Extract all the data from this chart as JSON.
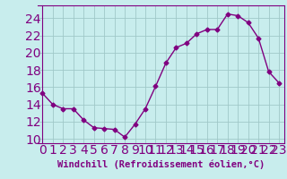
{
  "x": [
    0,
    1,
    2,
    3,
    4,
    5,
    6,
    7,
    8,
    9,
    10,
    11,
    12,
    13,
    14,
    15,
    16,
    17,
    18,
    19,
    20,
    21,
    22,
    23
  ],
  "y": [
    15.3,
    14.0,
    13.5,
    13.5,
    12.2,
    11.3,
    11.2,
    11.1,
    10.2,
    11.7,
    13.5,
    16.1,
    18.8,
    20.6,
    21.1,
    22.2,
    22.7,
    22.7,
    24.5,
    24.3,
    23.5,
    21.7,
    17.8,
    16.5
  ],
  "line_color": "#800080",
  "marker": "D",
  "marker_size": 2.5,
  "bg_color": "#c8eded",
  "grid_color": "#a0c8c8",
  "xlabel": "Windchill (Refroidissement éolien,°C)",
  "ylim": [
    9.5,
    25.5
  ],
  "xlim": [
    -0.5,
    23.5
  ],
  "yticks": [
    10,
    12,
    14,
    16,
    18,
    20,
    22,
    24
  ],
  "xticks": [
    0,
    1,
    2,
    3,
    4,
    5,
    6,
    7,
    8,
    9,
    10,
    11,
    12,
    13,
    14,
    15,
    16,
    17,
    18,
    19,
    20,
    21,
    22,
    23
  ],
  "tick_fontsize": 6.5,
  "xlabel_fontsize": 7.5
}
